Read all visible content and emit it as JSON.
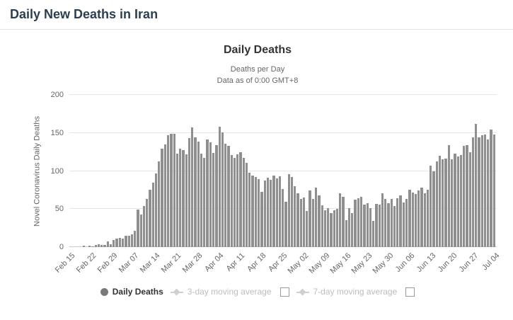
{
  "page": {
    "title": "Daily New Deaths in Iran"
  },
  "chart": {
    "title": "Daily Deaths",
    "subtitle_line1": "Deaths per Day",
    "subtitle_line2": "Data as of 0:00 GMT+8",
    "ylabel": "Novel Coronavirus Daily Deaths"
  },
  "legend": {
    "items": [
      {
        "label": "Daily Deaths",
        "active": true
      },
      {
        "label": "3-day moving average",
        "active": false
      },
      {
        "label": "7-day moving average",
        "active": false
      }
    ]
  },
  "chart_data": {
    "type": "bar",
    "title": "Daily Deaths",
    "subtitle": [
      "Deaths per Day",
      "Data as of 0:00 GMT+8"
    ],
    "ylabel": "Novel Coronavirus Daily Deaths",
    "ylim": [
      0,
      200
    ],
    "yticks": [
      0,
      50,
      100,
      150,
      200
    ],
    "bar_color": "#8f8f8f",
    "grid": true,
    "legend_position": "bottom",
    "x_tick_every": 7,
    "x_tick_labels": [
      "Feb 15",
      "Feb 22",
      "Feb 29",
      "Mar 07",
      "Mar 14",
      "Mar 21",
      "Mar 28",
      "Apr 04",
      "Apr 11",
      "Apr 18",
      "Apr 25",
      "May 02",
      "May 09",
      "May 16",
      "May 23",
      "May 30",
      "Jun 06",
      "Jun 13",
      "Jun 20",
      "Jun 27",
      "Jul 04"
    ],
    "categories": [
      "Feb 15",
      "Feb 16",
      "Feb 17",
      "Feb 18",
      "Feb 19",
      "Feb 20",
      "Feb 21",
      "Feb 22",
      "Feb 23",
      "Feb 24",
      "Feb 25",
      "Feb 26",
      "Feb 27",
      "Feb 28",
      "Feb 29",
      "Mar 01",
      "Mar 02",
      "Mar 03",
      "Mar 04",
      "Mar 05",
      "Mar 06",
      "Mar 07",
      "Mar 08",
      "Mar 09",
      "Mar 10",
      "Mar 11",
      "Mar 12",
      "Mar 13",
      "Mar 14",
      "Mar 15",
      "Mar 16",
      "Mar 17",
      "Mar 18",
      "Mar 19",
      "Mar 20",
      "Mar 21",
      "Mar 22",
      "Mar 23",
      "Mar 24",
      "Mar 25",
      "Mar 26",
      "Mar 27",
      "Mar 28",
      "Mar 29",
      "Mar 30",
      "Mar 31",
      "Apr 01",
      "Apr 02",
      "Apr 03",
      "Apr 04",
      "Apr 05",
      "Apr 06",
      "Apr 07",
      "Apr 08",
      "Apr 09",
      "Apr 10",
      "Apr 11",
      "Apr 12",
      "Apr 13",
      "Apr 14",
      "Apr 15",
      "Apr 16",
      "Apr 17",
      "Apr 18",
      "Apr 19",
      "Apr 20",
      "Apr 21",
      "Apr 22",
      "Apr 23",
      "Apr 24",
      "Apr 25",
      "Apr 26",
      "Apr 27",
      "Apr 28",
      "Apr 29",
      "Apr 30",
      "May 01",
      "May 02",
      "May 03",
      "May 04",
      "May 05",
      "May 06",
      "May 07",
      "May 08",
      "May 09",
      "May 10",
      "May 11",
      "May 12",
      "May 13",
      "May 14",
      "May 15",
      "May 16",
      "May 17",
      "May 18",
      "May 19",
      "May 20",
      "May 21",
      "May 22",
      "May 23",
      "May 24",
      "May 25",
      "May 26",
      "May 27",
      "May 28",
      "May 29",
      "May 30",
      "May 31",
      "Jun 01",
      "Jun 02",
      "Jun 03",
      "Jun 04",
      "Jun 05",
      "Jun 06",
      "Jun 07",
      "Jun 08",
      "Jun 09",
      "Jun 10",
      "Jun 11",
      "Jun 12",
      "Jun 13",
      "Jun 14",
      "Jun 15",
      "Jun 16",
      "Jun 17",
      "Jun 18",
      "Jun 19",
      "Jun 20",
      "Jun 21",
      "Jun 22",
      "Jun 23",
      "Jun 24",
      "Jun 25",
      "Jun 26",
      "Jun 27",
      "Jun 28",
      "Jun 29",
      "Jun 30",
      "Jul 01",
      "Jul 02",
      "Jul 03",
      "Jul 04"
    ],
    "values": [
      0,
      0,
      0,
      0,
      2,
      0,
      2,
      1,
      3,
      4,
      3,
      3,
      7,
      4,
      9,
      11,
      12,
      11,
      15,
      15,
      17,
      21,
      49,
      43,
      54,
      63,
      75,
      85,
      97,
      113,
      129,
      135,
      147,
      149,
      149,
      123,
      129,
      127,
      122,
      143,
      157,
      144,
      139,
      123,
      117,
      141,
      138,
      124,
      134,
      158,
      151,
      136,
      133,
      121,
      117,
      122,
      125,
      117,
      111,
      98,
      94,
      92,
      89,
      73,
      87,
      91,
      88,
      94,
      90,
      93,
      76,
      60,
      96,
      92,
      80,
      71,
      63,
      65,
      47,
      74,
      63,
      78,
      68,
      55,
      48,
      51,
      45,
      48,
      50,
      71,
      66,
      35,
      51,
      45,
      62,
      64,
      66,
      56,
      58,
      51,
      34,
      57,
      56,
      71,
      63,
      58,
      63,
      54,
      64,
      68,
      59,
      63,
      75,
      72,
      70,
      74,
      78,
      71,
      75,
      107,
      100,
      113,
      120,
      115,
      116,
      134,
      115,
      123,
      119,
      121,
      133,
      134,
      125,
      144,
      162,
      144,
      147,
      148,
      141,
      154,
      148
    ]
  }
}
